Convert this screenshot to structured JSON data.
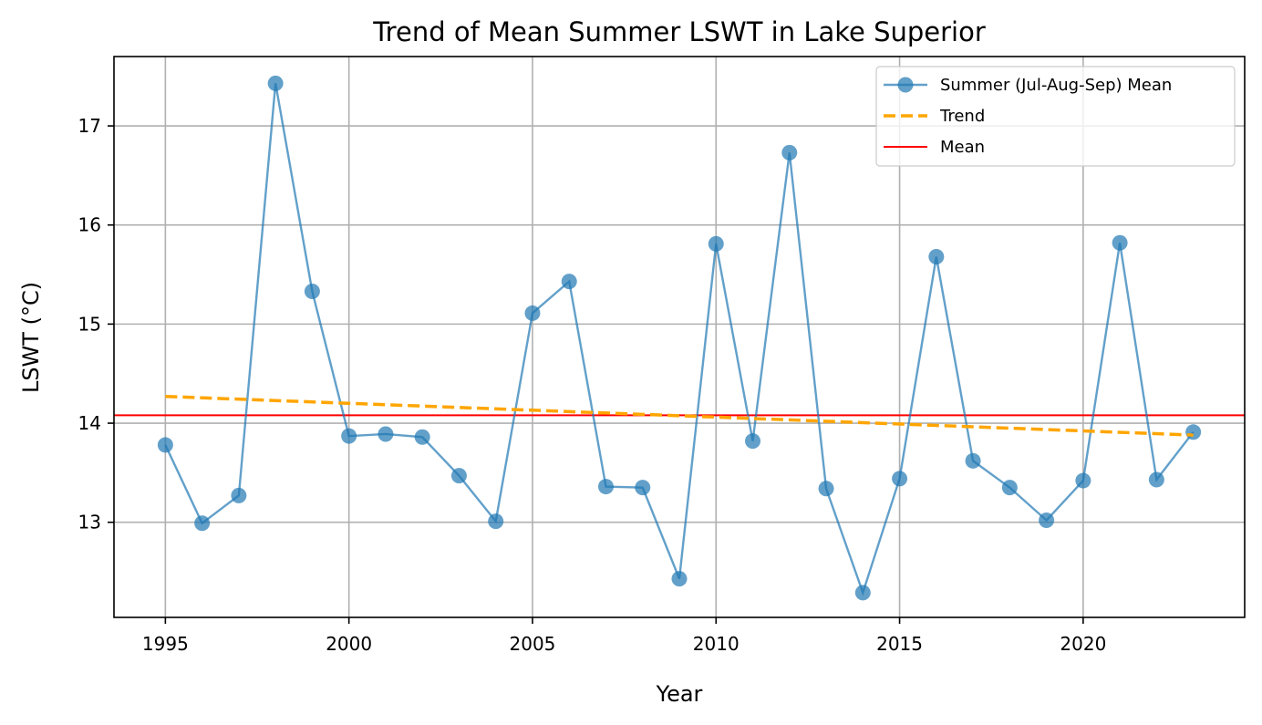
{
  "chart_data": {
    "type": "line",
    "title": "Trend of Mean Summer LSWT in Lake Superior",
    "xlabel": "Year",
    "ylabel": "LSWT (°C)",
    "xlim": [
      1993.6,
      2024.4
    ],
    "ylim": [
      12.04,
      17.7
    ],
    "xticks": [
      1995,
      2000,
      2005,
      2010,
      2015,
      2020
    ],
    "yticks": [
      13,
      14,
      15,
      16,
      17
    ],
    "grid": true,
    "legend_position": "top-right",
    "series": [
      {
        "name": "Summer (Jul-Aug-Sep) Mean",
        "kind": "line-markers",
        "color": "#1f77b4",
        "x": [
          1995,
          1996,
          1997,
          1998,
          1999,
          2000,
          2001,
          2002,
          2003,
          2004,
          2005,
          2006,
          2007,
          2008,
          2009,
          2010,
          2011,
          2012,
          2013,
          2014,
          2015,
          2016,
          2017,
          2018,
          2019,
          2020,
          2021,
          2022,
          2023
        ],
        "y": [
          13.78,
          12.99,
          13.27,
          17.43,
          15.33,
          13.87,
          13.89,
          13.86,
          13.47,
          13.01,
          15.11,
          15.43,
          13.36,
          13.35,
          12.43,
          15.81,
          13.82,
          16.73,
          13.34,
          12.29,
          13.44,
          15.68,
          13.62,
          13.35,
          13.02,
          13.42,
          15.82,
          13.43,
          13.91
        ]
      },
      {
        "name": "Trend",
        "kind": "dashed-line",
        "color": "#ffa500",
        "x": [
          1995,
          2023
        ],
        "y": [
          14.27,
          13.88
        ]
      },
      {
        "name": "Mean",
        "kind": "hline",
        "color": "#ff0000",
        "y": 14.08
      }
    ]
  }
}
